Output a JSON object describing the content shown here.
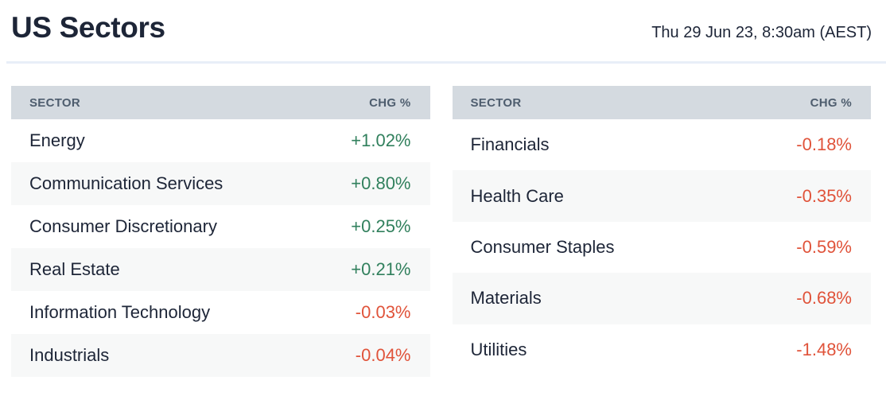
{
  "header": {
    "title": "US Sectors",
    "timestamp": "Thu 29 Jun 23, 8:30am (AEST)"
  },
  "table_left": {
    "columns": [
      "SECTOR",
      "CHG %"
    ],
    "rows": [
      {
        "sector": "Energy",
        "change": "+1.02%",
        "direction": "up"
      },
      {
        "sector": "Communication Services",
        "change": "+0.80%",
        "direction": "up"
      },
      {
        "sector": "Consumer Discretionary",
        "change": "+0.25%",
        "direction": "up"
      },
      {
        "sector": "Real Estate",
        "change": "+0.21%",
        "direction": "up"
      },
      {
        "sector": "Information Technology",
        "change": "-0.03%",
        "direction": "down"
      },
      {
        "sector": "Industrials",
        "change": "-0.04%",
        "direction": "down"
      }
    ]
  },
  "table_right": {
    "columns": [
      "SECTOR",
      "CHG %"
    ],
    "rows": [
      {
        "sector": "Financials",
        "change": "-0.18%",
        "direction": "down"
      },
      {
        "sector": "Health Care",
        "change": "-0.35%",
        "direction": "down"
      },
      {
        "sector": "Consumer Staples",
        "change": "-0.59%",
        "direction": "down"
      },
      {
        "sector": "Materials",
        "change": "-0.68%",
        "direction": "down"
      },
      {
        "sector": "Utilities",
        "change": "-1.48%",
        "direction": "down"
      }
    ]
  },
  "colors": {
    "positive": "#31805d",
    "negative": "#e0533a",
    "header_bg": "#d4dae0",
    "header_text": "#4e5d6e",
    "row_alt_bg": "#f7f8f8",
    "title_text": "#1d2537",
    "divider": "#e8eef8"
  },
  "chart_data": {
    "type": "table",
    "title": "US Sectors",
    "timestamp": "Thu 29 Jun 23, 8:30am (AEST)",
    "columns": [
      "SECTOR",
      "CHG %"
    ],
    "categories": [
      "Energy",
      "Communication Services",
      "Consumer Discretionary",
      "Real Estate",
      "Information Technology",
      "Industrials",
      "Financials",
      "Health Care",
      "Consumer Staples",
      "Materials",
      "Utilities"
    ],
    "series": [
      {
        "name": "CHG %",
        "values": [
          1.02,
          0.8,
          0.25,
          0.21,
          -0.03,
          -0.04,
          -0.18,
          -0.35,
          -0.59,
          -0.68,
          -1.48
        ]
      }
    ],
    "layout": "two side-by-side tables, gainers left sorted desc, losers right sorted desc"
  }
}
